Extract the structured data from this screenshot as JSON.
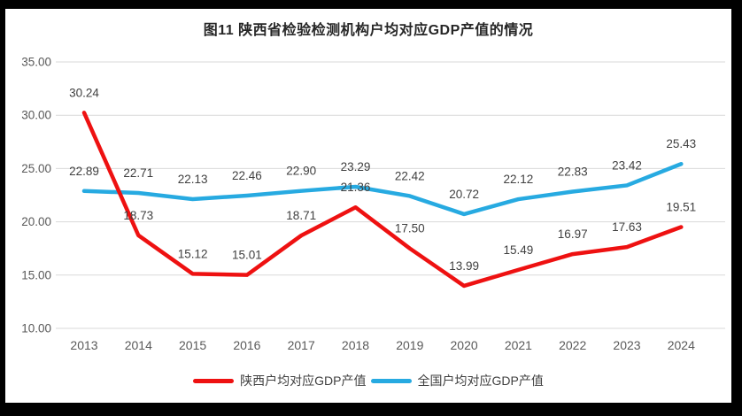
{
  "frame": {
    "background": "#000000",
    "panel_background": "#ffffff"
  },
  "chart_data": {
    "type": "line",
    "title": "图11  陕西省检验检测机构户均对应GDP产值的情况",
    "categories": [
      "2013",
      "2014",
      "2015",
      "2016",
      "2017",
      "2018",
      "2019",
      "2020",
      "2021",
      "2022",
      "2023",
      "2024"
    ],
    "series": [
      {
        "name": "陕西户均对应GDP产值",
        "color": "#ee1111",
        "values": [
          30.24,
          18.73,
          15.12,
          15.01,
          18.71,
          21.36,
          17.5,
          13.99,
          15.49,
          16.97,
          17.63,
          19.51
        ]
      },
      {
        "name": "全国户均对应GDP产值",
        "color": "#27aae1",
        "values": [
          22.89,
          22.71,
          22.13,
          22.46,
          22.9,
          23.29,
          22.42,
          20.72,
          22.12,
          22.83,
          23.42,
          25.43
        ]
      }
    ],
    "ylim": [
      10,
      35
    ],
    "y_tick_step": 5,
    "y_tick_labels": [
      "10.00",
      "15.00",
      "20.00",
      "25.00",
      "30.00",
      "35.00"
    ],
    "data_label_decimals": 2,
    "grid": true,
    "legend_position": "bottom",
    "colors": {
      "gridline": "#d9d9d9",
      "tick_label": "#595959",
      "data_label": "#404040",
      "title": "#262626"
    }
  }
}
